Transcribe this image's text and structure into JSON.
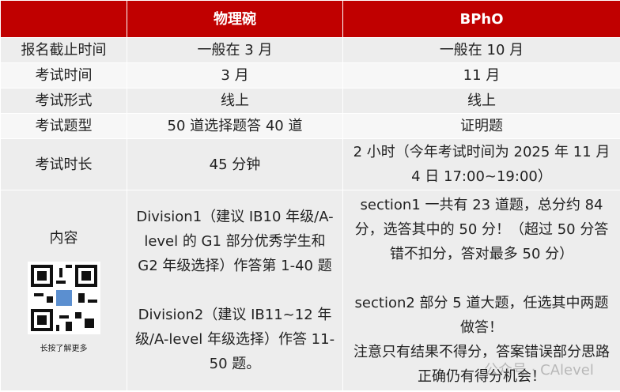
{
  "table": {
    "header": [
      "物理碗",
      "BPhO"
    ],
    "rows": [
      [
        "报名截止时间",
        "一般在 3 月",
        "一般在 10 月"
      ],
      [
        "考试时间",
        "3 月",
        "11 月"
      ],
      [
        "考试形式",
        "线上",
        "线上"
      ],
      [
        "考试题型",
        "50 道选择题答 40 道",
        "证明题"
      ],
      [
        "考试时长",
        "45 分钟",
        "2 小时（今年考试时间为 2025 年 11 月 4 日 17:00~19:00）"
      ]
    ],
    "content": {
      "label": "内容",
      "col2": [
        "Division1（建议 IB10 年级/A-level 的 G1 部分优秀学生和 G2 年级选择）作答第 1-40 题",
        "Division2（建议 IB11~12 年级/A-level 年级选择）作答 11-50 题。"
      ],
      "col3": [
        "section1 一共有 23 道题，总分约 84 分，选答其中的 50 分！（超过 50 分答错不扣分，答对最多 50 分）",
        "section2 部分 5 道大题，任选其中两题做答！",
        "注意只有结果不得分，答案错误部分思路正确仍有得分机会！"
      ]
    },
    "qr_caption": "长按了解更多",
    "watermark": "公众号 · CAlevel"
  }
}
